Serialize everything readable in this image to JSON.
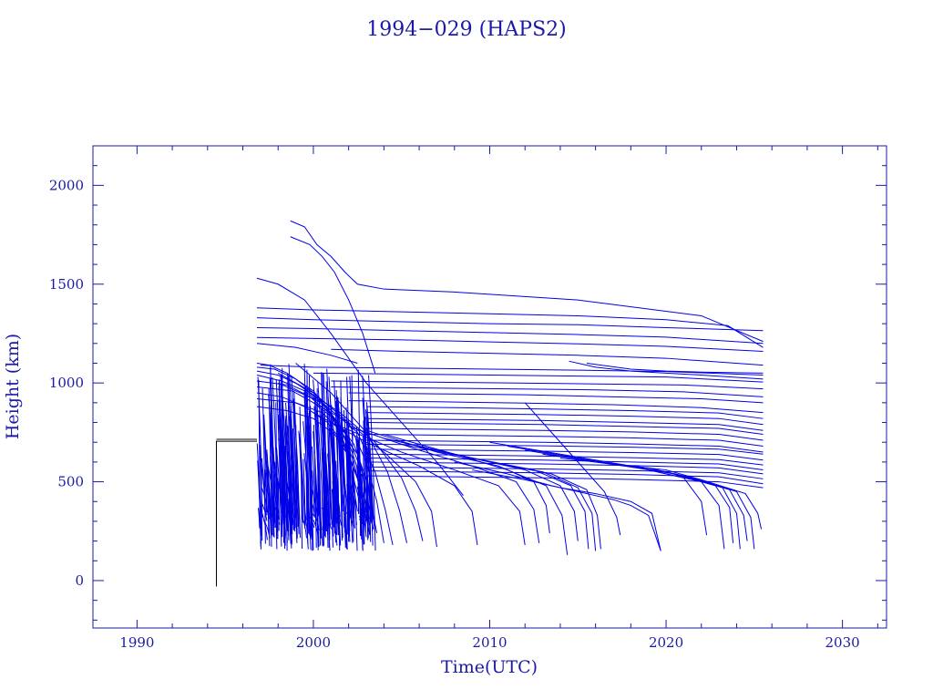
{
  "chart_data": {
    "type": "line",
    "title": "1994−029 (HAPS2)",
    "xlabel": "Time(UTC)",
    "ylabel": "Height (km)",
    "xlim": [
      1987.5,
      2032.5
    ],
    "ylim": [
      -240,
      2200
    ],
    "x_ticks": [
      1990,
      2000,
      2010,
      2020,
      2030
    ],
    "x_tick_labels": [
      "1990",
      "2000",
      "2010",
      "2020",
      "2030"
    ],
    "y_ticks": [
      0,
      500,
      1000,
      1500,
      2000
    ],
    "y_tick_labels": [
      "0",
      "500",
      "1000",
      "1500",
      "2000"
    ],
    "colors": {
      "axis": "#1a1aa6",
      "debris": "#0000e6",
      "parent": "#000000"
    },
    "parent_object": {
      "name": "1994−029 (HAPS2)",
      "x": [
        1994.5,
        1994.5,
        1996.8
      ],
      "y": [
        -30,
        705,
        705
      ]
    },
    "debris_traces": [
      {
        "x": [
          1998.7,
          1999.5,
          2000.2,
          2001.0,
          2001.8,
          2002.5,
          2004.0,
          2008.0,
          2015.0,
          2022.0,
          2025.5
        ],
        "y": [
          1820,
          1790,
          1700,
          1640,
          1560,
          1500,
          1475,
          1460,
          1420,
          1340,
          1210
        ]
      },
      {
        "x": [
          1998.7,
          1999.8,
          2000.5,
          2001.2,
          2002.0,
          2002.8,
          2003.5
        ],
        "y": [
          1740,
          1700,
          1640,
          1560,
          1420,
          1250,
          1050
        ]
      },
      {
        "x": [
          1996.8,
          1998.0,
          1999.5,
          2001.0,
          2003.0,
          2005.0,
          2007.0,
          2008.5
        ],
        "y": [
          1530,
          1500,
          1420,
          1250,
          1000,
          800,
          600,
          430
        ]
      },
      {
        "x": [
          1996.8,
          2000.0,
          2005.0,
          2010.0,
          2015.0,
          2020.0,
          2023.5,
          2025.5
        ],
        "y": [
          1380,
          1370,
          1360,
          1350,
          1340,
          1320,
          1290,
          1180
        ]
      },
      {
        "x": [
          1996.8,
          2000.0,
          2005.0,
          2010.0,
          2015.0,
          2020.0,
          2025.5
        ],
        "y": [
          1330,
          1320,
          1310,
          1300,
          1295,
          1280,
          1265
        ]
      },
      {
        "x": [
          1996.8,
          2000.0,
          2005.0,
          2010.0,
          2015.0,
          2020.0,
          2025.5
        ],
        "y": [
          1280,
          1275,
          1265,
          1255,
          1245,
          1232,
          1200
        ]
      },
      {
        "x": [
          1996.8,
          2000.0,
          2005.0,
          2010.0,
          2015.0,
          2020.0,
          2025.5
        ],
        "y": [
          1230,
          1225,
          1218,
          1208,
          1198,
          1185,
          1160
        ]
      },
      {
        "x": [
          1996.8,
          1999.0,
          2001.0,
          2002.5
        ],
        "y": [
          1200,
          1180,
          1140,
          1100
        ]
      },
      {
        "x": [
          2001.0,
          2005.0,
          2010.0,
          2015.0,
          2020.0,
          2025.5
        ],
        "y": [
          1170,
          1160,
          1150,
          1140,
          1125,
          1090
        ]
      },
      {
        "x": [
          1997.0,
          2000.0,
          2005.0,
          2010.0,
          2015.0,
          2020.0,
          2025.5
        ],
        "y": [
          1090,
          1080,
          1075,
          1070,
          1065,
          1058,
          1040
        ]
      },
      {
        "x": [
          2000.0,
          2005.0,
          2010.0,
          2015.0,
          2020.0,
          2025.5
        ],
        "y": [
          1050,
          1045,
          1040,
          1035,
          1030,
          1005
        ]
      },
      {
        "x": [
          2001.0,
          2006.0,
          2011.0,
          2016.0,
          2021.0,
          2025.5
        ],
        "y": [
          1010,
          1005,
          1000,
          995,
          990,
          970
        ]
      },
      {
        "x": [
          2001.0,
          2006.0,
          2011.0,
          2016.0,
          2021.0,
          2025.5
        ],
        "y": [
          980,
          975,
          970,
          965,
          955,
          930
        ]
      },
      {
        "x": [
          2002.0,
          2007.0,
          2012.0,
          2017.0,
          2022.0,
          2025.5
        ],
        "y": [
          950,
          945,
          940,
          930,
          920,
          900
        ]
      },
      {
        "x": [
          2002.0,
          2007.0,
          2012.0,
          2017.0,
          2022.0,
          2025.5
        ],
        "y": [
          910,
          905,
          898,
          890,
          875,
          850
        ]
      },
      {
        "x": [
          2003.0,
          2008.0,
          2013.0,
          2018.0,
          2023.0,
          2025.5
        ],
        "y": [
          880,
          875,
          868,
          860,
          848,
          820
        ]
      },
      {
        "x": [
          2003.0,
          2008.0,
          2013.0,
          2018.0,
          2023.0,
          2025.5
        ],
        "y": [
          850,
          845,
          840,
          832,
          820,
          790
        ]
      },
      {
        "x": [
          2003.0,
          2008.0,
          2013.0,
          2018.0,
          2023.0,
          2025.5
        ],
        "y": [
          820,
          815,
          810,
          800,
          790,
          760
        ]
      },
      {
        "x": [
          2003.0,
          2008.0,
          2013.0,
          2018.0,
          2023.0,
          2025.5
        ],
        "y": [
          800,
          795,
          790,
          780,
          770,
          740
        ]
      },
      {
        "x": [
          2003.0,
          2008.0,
          2013.0,
          2018.0,
          2023.0,
          2025.5
        ],
        "y": [
          770,
          765,
          760,
          752,
          740,
          710
        ]
      },
      {
        "x": [
          2003.0,
          2008.0,
          2013.0,
          2018.0,
          2023.0,
          2025.5
        ],
        "y": [
          740,
          735,
          730,
          722,
          710,
          680
        ]
      },
      {
        "x": [
          2003.0,
          2008.0,
          2013.0,
          2018.0,
          2023.0,
          2025.5
        ],
        "y": [
          710,
          705,
          700,
          692,
          680,
          650
        ]
      },
      {
        "x": [
          2003.0,
          2008.0,
          2013.0,
          2018.0,
          2023.0,
          2025.5
        ],
        "y": [
          690,
          686,
          682,
          675,
          665,
          640
        ]
      },
      {
        "x": [
          2003.0,
          2008.0,
          2013.0,
          2018.0,
          2023.0,
          2025.5
        ],
        "y": [
          665,
          660,
          655,
          648,
          638,
          610
        ]
      },
      {
        "x": [
          2003.0,
          2008.0,
          2013.0,
          2018.0,
          2023.0,
          2025.5
        ],
        "y": [
          640,
          636,
          630,
          622,
          612,
          585
        ]
      },
      {
        "x": [
          2003.0,
          2008.0,
          2013.0,
          2018.0,
          2023.0,
          2025.5
        ],
        "y": [
          620,
          615,
          610,
          600,
          590,
          560
        ]
      },
      {
        "x": [
          2003.0,
          2008.0,
          2013.0,
          2018.0,
          2023.0,
          2025.5
        ],
        "y": [
          600,
          595,
          590,
          582,
          570,
          540
        ]
      },
      {
        "x": [
          2003.0,
          2008.0,
          2013.0,
          2018.0,
          2023.0,
          2025.5
        ],
        "y": [
          575,
          570,
          565,
          557,
          545,
          515
        ]
      },
      {
        "x": [
          2003.0,
          2008.0,
          2013.0,
          2018.0,
          2023.0,
          2025.5
        ],
        "y": [
          555,
          550,
          545,
          537,
          525,
          490
        ]
      },
      {
        "x": [
          2003.0,
          2008.0,
          2013.0,
          2018.0,
          2023.0,
          2025.5
        ],
        "y": [
          530,
          525,
          520,
          512,
          500,
          470
        ]
      },
      {
        "x": [
          1998.0,
          2000.0,
          2002.0,
          2003.0,
          2003.6,
          2004.0
        ],
        "y": [
          1050,
          950,
          800,
          600,
          400,
          190
        ]
      },
      {
        "x": [
          1998.0,
          2000.5,
          2002.5,
          2003.5,
          2004.1,
          2004.5
        ],
        "y": [
          1000,
          900,
          750,
          550,
          350,
          180
        ]
      },
      {
        "x": [
          1999.0,
          2001.0,
          2003.0,
          2004.2,
          2004.9,
          2005.3
        ],
        "y": [
          1100,
          950,
          750,
          550,
          350,
          190
        ]
      },
      {
        "x": [
          1999.0,
          2001.5,
          2003.5,
          2005.0,
          2005.8,
          2006.2
        ],
        "y": [
          1000,
          850,
          700,
          520,
          350,
          200
        ]
      },
      {
        "x": [
          2000.0,
          2002.0,
          2004.0,
          2005.8,
          2006.7,
          2007.0
        ],
        "y": [
          900,
          800,
          650,
          500,
          350,
          170
        ]
      },
      {
        "x": [
          2000.0,
          2003.0,
          2006.0,
          2008.0,
          2009.0,
          2009.3
        ],
        "y": [
          850,
          700,
          580,
          480,
          350,
          180
        ]
      },
      {
        "x": [
          2001.0,
          2005.0,
          2008.0,
          2010.5,
          2011.7,
          2012.0
        ],
        "y": [
          800,
          650,
          560,
          480,
          350,
          180
        ]
      },
      {
        "x": [
          2002.0,
          2006.0,
          2009.0,
          2011.5,
          2012.5,
          2012.8
        ],
        "y": [
          780,
          660,
          580,
          500,
          360,
          190
        ]
      },
      {
        "x": [
          2003.0,
          2007.0,
          2010.5,
          2012.5,
          2013.2,
          2013.4
        ],
        "y": [
          760,
          650,
          580,
          500,
          380,
          240
        ]
      },
      {
        "x": [
          2004.0,
          2008.0,
          2011.0,
          2013.2,
          2014.1,
          2014.4
        ],
        "y": [
          740,
          640,
          560,
          480,
          330,
          130
        ]
      },
      {
        "x": [
          2004.0,
          2008.5,
          2012.0,
          2014.0,
          2014.8,
          2015.0
        ],
        "y": [
          720,
          630,
          560,
          480,
          350,
          200
        ]
      },
      {
        "x": [
          2005.0,
          2009.0,
          2012.5,
          2014.6,
          2015.4,
          2015.6
        ],
        "y": [
          700,
          620,
          560,
          480,
          350,
          160
        ]
      },
      {
        "x": [
          2005.0,
          2009.5,
          2013.0,
          2015.0,
          2015.8,
          2016.0
        ],
        "y": [
          690,
          610,
          550,
          470,
          340,
          150
        ]
      },
      {
        "x": [
          2006.0,
          2010.0,
          2013.5,
          2015.5,
          2016.1,
          2016.3
        ],
        "y": [
          680,
          600,
          540,
          460,
          330,
          160
        ]
      },
      {
        "x": [
          2008.0,
          2011.0,
          2013.5,
          2015.5,
          2017.0,
          2018.0,
          2019.0,
          2019.7
        ],
        "y": [
          600,
          540,
          480,
          440,
          410,
          380,
          330,
          150
        ]
      },
      {
        "x": [
          2009.0,
          2012.0,
          2014.0,
          2016.0,
          2018.0,
          2019.2,
          2019.7
        ],
        "y": [
          560,
          510,
          470,
          440,
          400,
          340,
          150
        ]
      },
      {
        "x": [
          2012.0,
          2013.5,
          2015.0,
          2016.5,
          2017.2,
          2017.4
        ],
        "y": [
          900,
          750,
          600,
          450,
          320,
          230
        ]
      },
      {
        "x": [
          2014.5,
          2016.0,
          2018.0,
          2020.0,
          2022.0,
          2025.5
        ],
        "y": [
          1110,
          1080,
          1060,
          1050,
          1040,
          1020
        ]
      },
      {
        "x": [
          2015.5,
          2018.0,
          2020.0,
          2022.0,
          2025.5
        ],
        "y": [
          1100,
          1070,
          1060,
          1055,
          1050
        ]
      },
      {
        "x": [
          2010.0,
          2014.0,
          2018.0,
          2021.0,
          2022.0,
          2022.3
        ],
        "y": [
          700,
          640,
          580,
          520,
          400,
          230
        ]
      },
      {
        "x": [
          2011.0,
          2015.0,
          2019.0,
          2022.0,
          2023.0,
          2023.3
        ],
        "y": [
          680,
          620,
          560,
          500,
          380,
          160
        ]
      },
      {
        "x": [
          2012.0,
          2016.0,
          2020.0,
          2022.8,
          2023.6,
          2023.8
        ],
        "y": [
          660,
          600,
          550,
          480,
          370,
          190
        ]
      },
      {
        "x": [
          2013.0,
          2017.0,
          2020.5,
          2023.2,
          2024.0,
          2024.2
        ],
        "y": [
          640,
          590,
          540,
          470,
          340,
          160
        ]
      },
      {
        "x": [
          2014.0,
          2018.0,
          2021.0,
          2023.6,
          2024.4,
          2024.6
        ],
        "y": [
          620,
          580,
          530,
          460,
          330,
          200
        ]
      },
      {
        "x": [
          2015.0,
          2019.0,
          2021.5,
          2024.0,
          2024.8,
          2025.0
        ],
        "y": [
          610,
          570,
          520,
          450,
          320,
          160
        ]
      },
      {
        "x": [
          2016.0,
          2020.0,
          2022.0,
          2024.5,
          2025.2,
          2025.4
        ],
        "y": [
          600,
          560,
          510,
          440,
          340,
          260
        ]
      },
      {
        "x": [
          1996.8,
          1997.5,
          1998.5,
          2000.0,
          2001.0,
          2002.0,
          2002.5
        ],
        "y": [
          1100,
          1090,
          1050,
          960,
          840,
          650,
          350
        ]
      },
      {
        "x": [
          1996.8,
          1997.8,
          1999.0,
          2000.3,
          2001.2,
          2002.0,
          2002.8
        ],
        "y": [
          1080,
          1070,
          1020,
          930,
          810,
          620,
          330
        ]
      },
      {
        "x": [
          1996.8,
          1998.0,
          1999.2,
          2000.5,
          2001.5,
          2002.3,
          2003.0
        ],
        "y": [
          1060,
          1040,
          990,
          900,
          780,
          600,
          300
        ]
      },
      {
        "x": [
          1996.8,
          1998.2,
          1999.5,
          2000.8,
          2001.8,
          2002.5,
          2003.2
        ],
        "y": [
          1040,
          1010,
          960,
          870,
          750,
          570,
          280
        ]
      },
      {
        "x": [
          1996.8,
          1998.5,
          1999.8,
          2001.0,
          2002.0,
          2002.8,
          2003.4
        ],
        "y": [
          1010,
          990,
          930,
          840,
          720,
          540,
          260
        ]
      },
      {
        "x": [
          1996.8,
          1998.8,
          2000.0,
          2001.3,
          2002.3,
          2003.0,
          2003.6
        ],
        "y": [
          980,
          960,
          900,
          810,
          690,
          510,
          240
        ]
      },
      {
        "x": [
          1996.8,
          1998.2,
          1999.5,
          2000.8,
          2001.8,
          2002.6,
          2003.2
        ],
        "y": [
          950,
          930,
          880,
          800,
          680,
          500,
          230
        ]
      },
      {
        "x": [
          1996.8,
          1999.0,
          2000.5,
          2001.5,
          2002.5,
          2003.1,
          2003.5
        ],
        "y": [
          920,
          900,
          850,
          760,
          640,
          480,
          250
        ]
      },
      {
        "x": [
          1996.8,
          1998.5,
          2000.0,
          2001.2,
          2002.0,
          2002.7,
          2003.0
        ],
        "y": [
          880,
          860,
          820,
          740,
          630,
          470,
          220
        ]
      }
    ],
    "dense_cluster": {
      "x_range": [
        1996.8,
        2003.2
      ],
      "y_range": [
        150,
        1100
      ],
      "trace_count": 260
    }
  }
}
